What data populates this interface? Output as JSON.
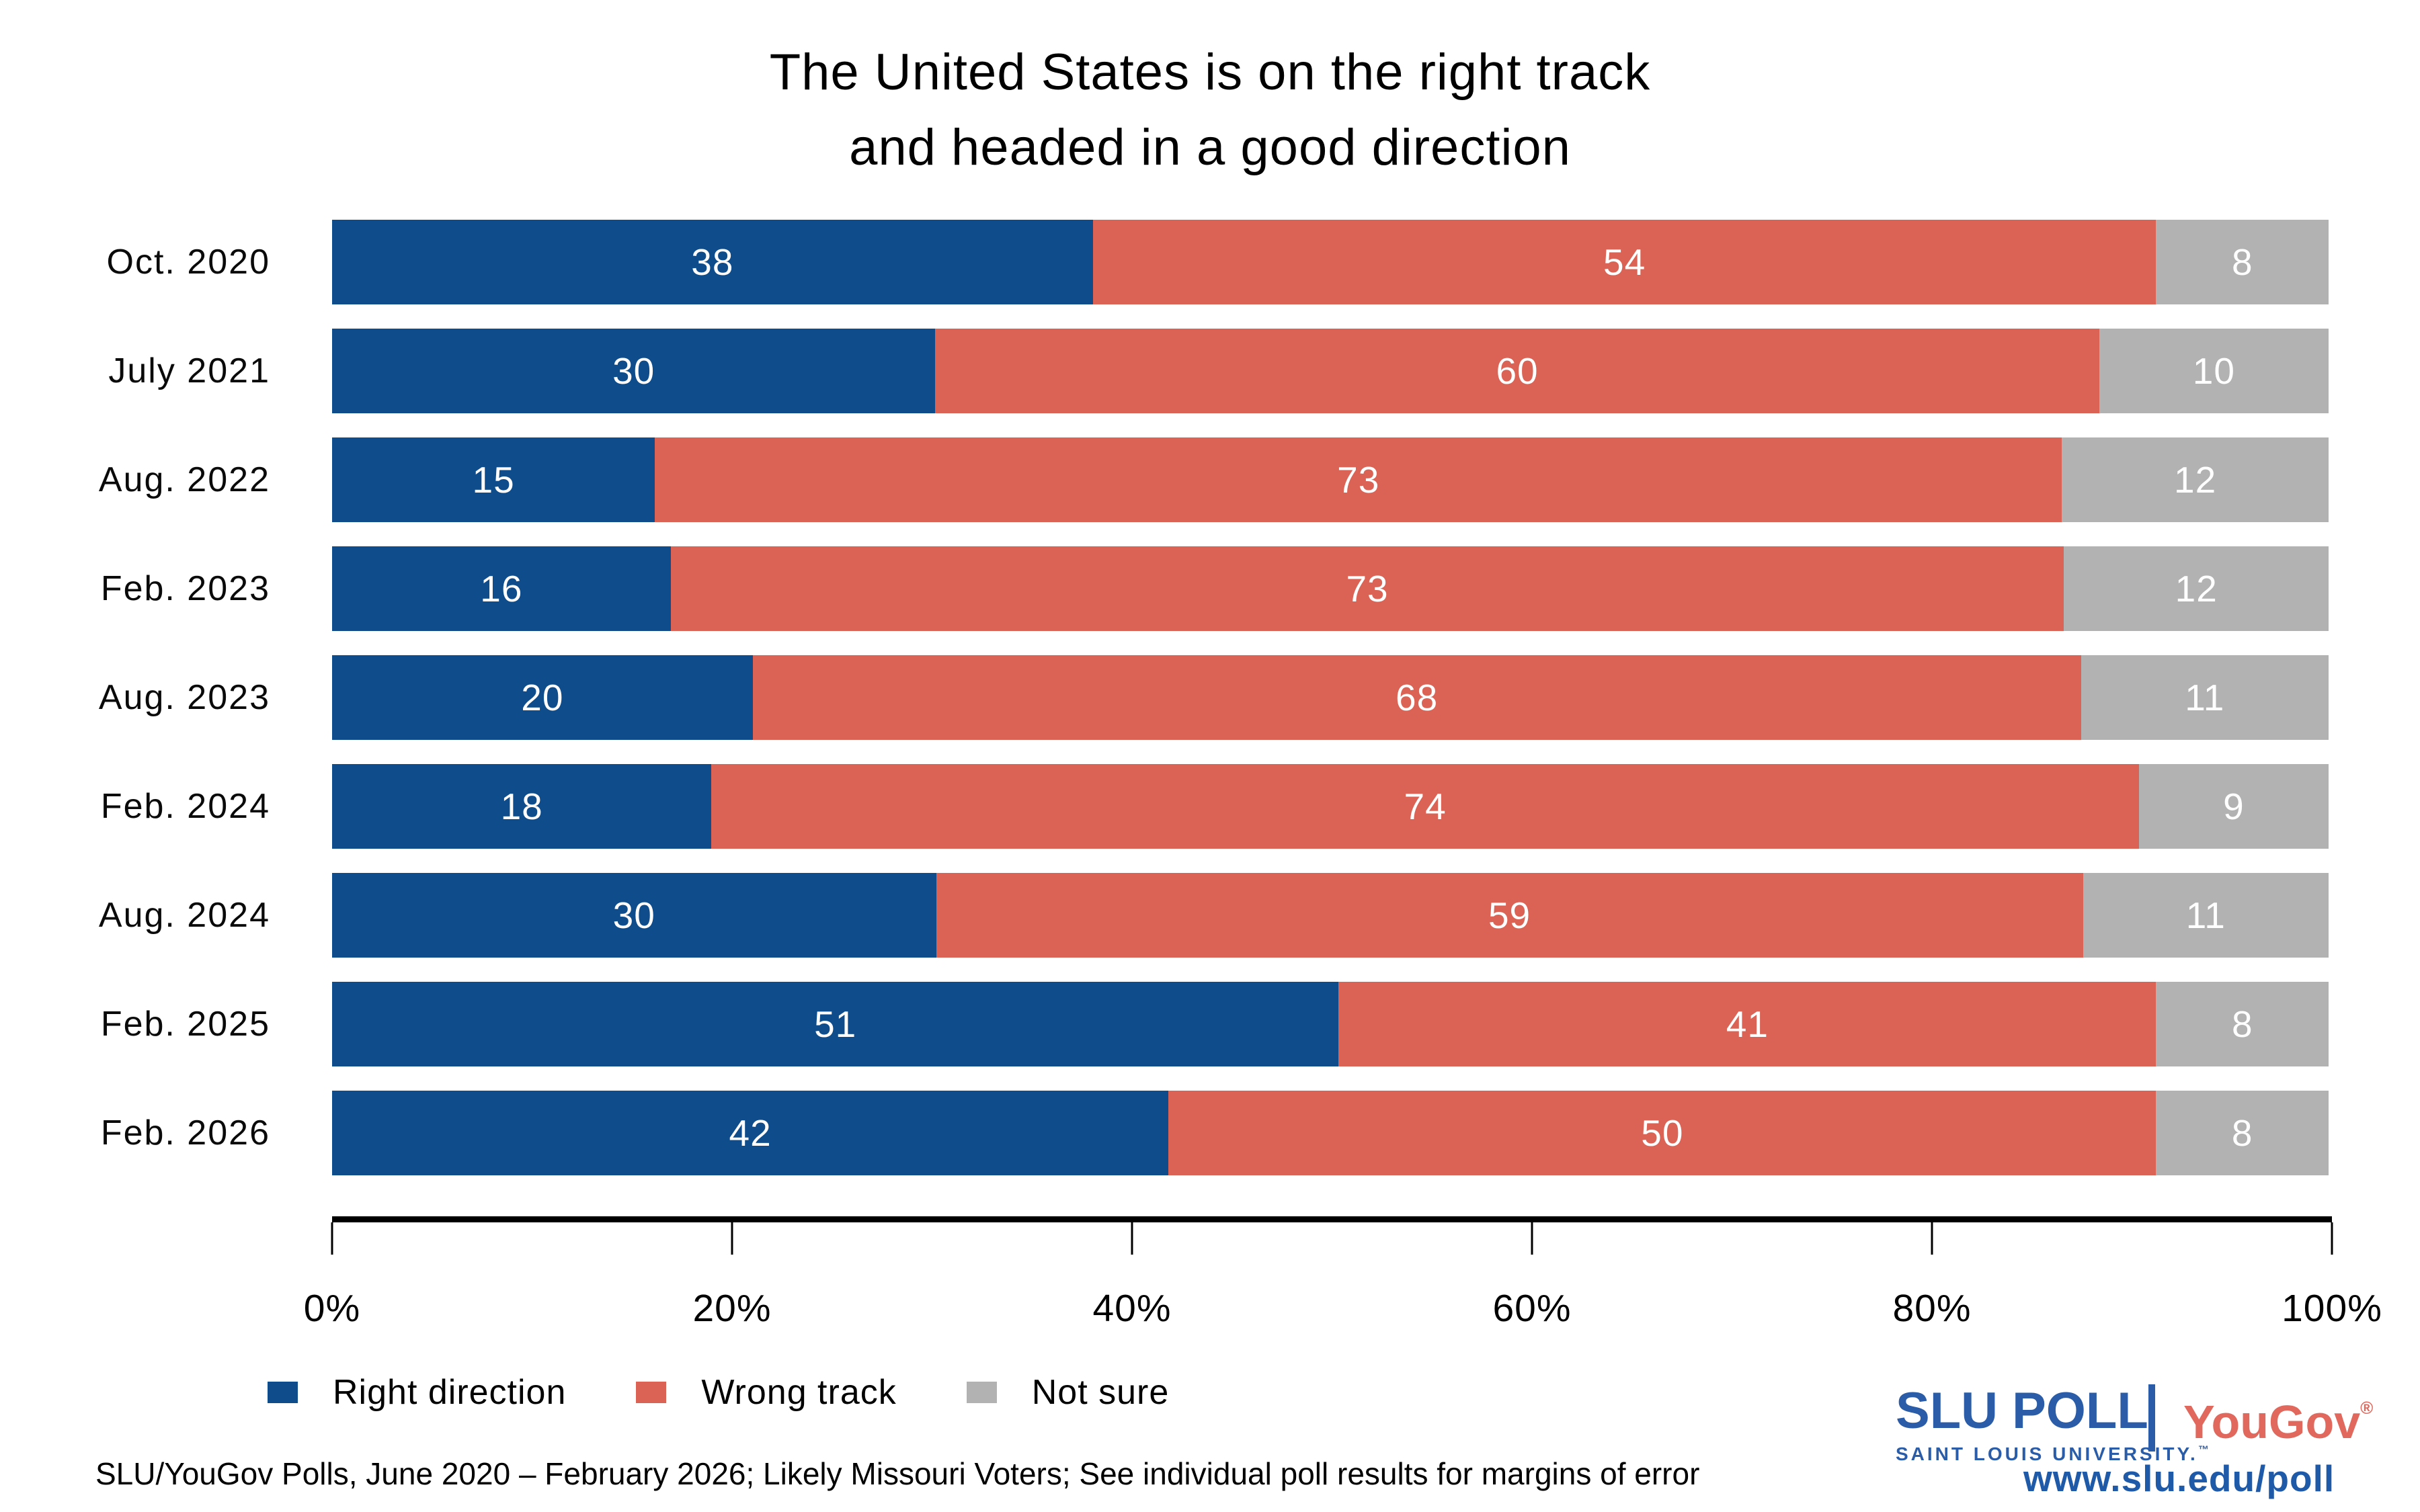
{
  "title": {
    "line1": "The United States is on the right track",
    "line2": "and headed in a good direction"
  },
  "chart_data": {
    "type": "bar",
    "subtype": "horizontal-stacked-percent",
    "title": "The United States is on the right track and headed in a good direction",
    "categories": [
      "Oct. 2020",
      "July 2021",
      "Aug. 2022",
      "Feb. 2023",
      "Aug. 2023",
      "Feb. 2024",
      "Aug. 2024",
      "Feb. 2025",
      "Feb. 2026"
    ],
    "series": [
      {
        "name": "Right direction",
        "color": "#0F4C8B",
        "values": [
          38,
          30,
          15,
          16,
          20,
          18,
          30,
          51,
          42
        ]
      },
      {
        "name": "Wrong track",
        "color": "#DB6355",
        "values": [
          54,
          60,
          73,
          73,
          68,
          74,
          59,
          41,
          50
        ]
      },
      {
        "name": "Not sure",
        "color": "#B2B2B2",
        "values": [
          8,
          10,
          12,
          12,
          11,
          9,
          11,
          8,
          8
        ]
      }
    ],
    "value_labels_shown": true,
    "bars_normalized_to_full_width": true,
    "x_axis": {
      "ticks": [
        "0%",
        "20%",
        "40%",
        "60%",
        "80%",
        "100%"
      ],
      "range": [
        0,
        100
      ],
      "grid": false
    },
    "legend_position": "bottom-left"
  },
  "footer": {
    "source_note": "SLU/YouGov Polls, June 2020 – February 2026; Likely Missouri Voters; See individual poll results for margins of error"
  },
  "branding": {
    "slu_poll": "SLU POLL",
    "slu_subtitle": "SAINT LOUIS UNIVERSITY.",
    "trademark": "™",
    "yougov": "YouGov",
    "registered": "®",
    "url": "www.slu.edu/poll",
    "colors": {
      "slu_blue": "#2B5CA7",
      "yougov_red": "#E0685C",
      "url_blue": "#1F5AA8"
    }
  }
}
